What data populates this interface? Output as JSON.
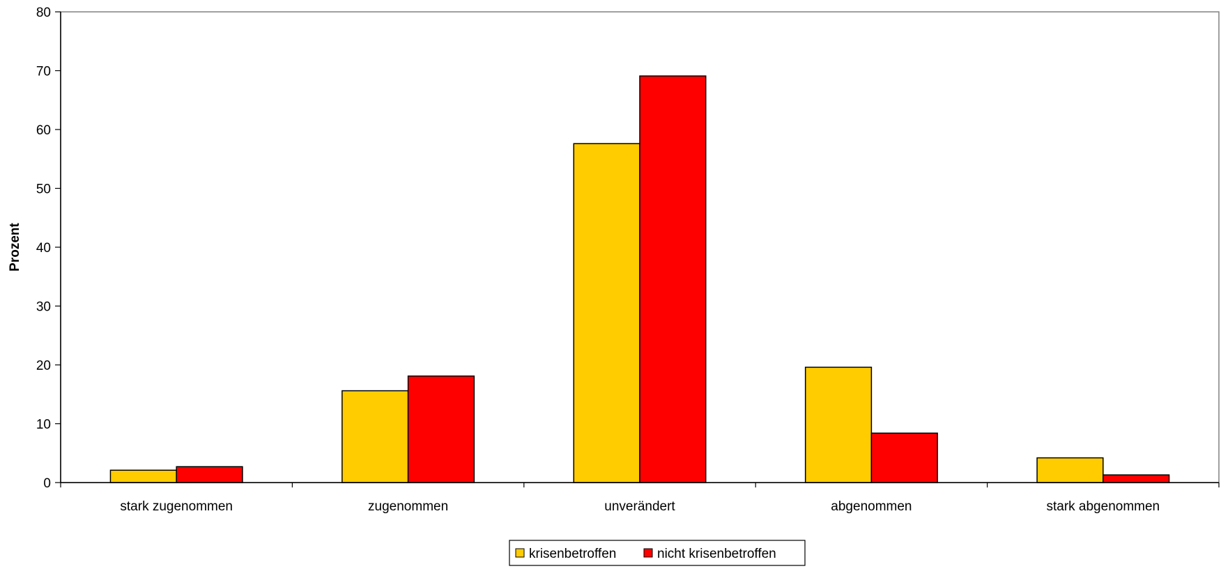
{
  "chart_data": {
    "type": "bar",
    "title": "",
    "xlabel": "",
    "ylabel": "Prozent",
    "ylim": [
      0,
      80
    ],
    "yticks": [
      0,
      10,
      20,
      30,
      40,
      50,
      60,
      70,
      80
    ],
    "ytick_labels": [
      "0",
      "10",
      "20",
      "30",
      "40",
      "50",
      "60",
      "70",
      "80"
    ],
    "grid": false,
    "legend_position": "bottom-center",
    "categories": [
      "stark zugenommen",
      "zugenommen",
      "unverändert",
      "abgenommen",
      "stark abgenommen"
    ],
    "series": [
      {
        "name": "krisenbetroffen",
        "color": "#FFCC00",
        "values": [
          2.1,
          15.6,
          57.6,
          19.6,
          4.2
        ]
      },
      {
        "name": "nicht krisenbetroffen",
        "color": "#FF0000",
        "values": [
          2.7,
          18.1,
          69.1,
          8.4,
          1.3
        ]
      }
    ]
  }
}
